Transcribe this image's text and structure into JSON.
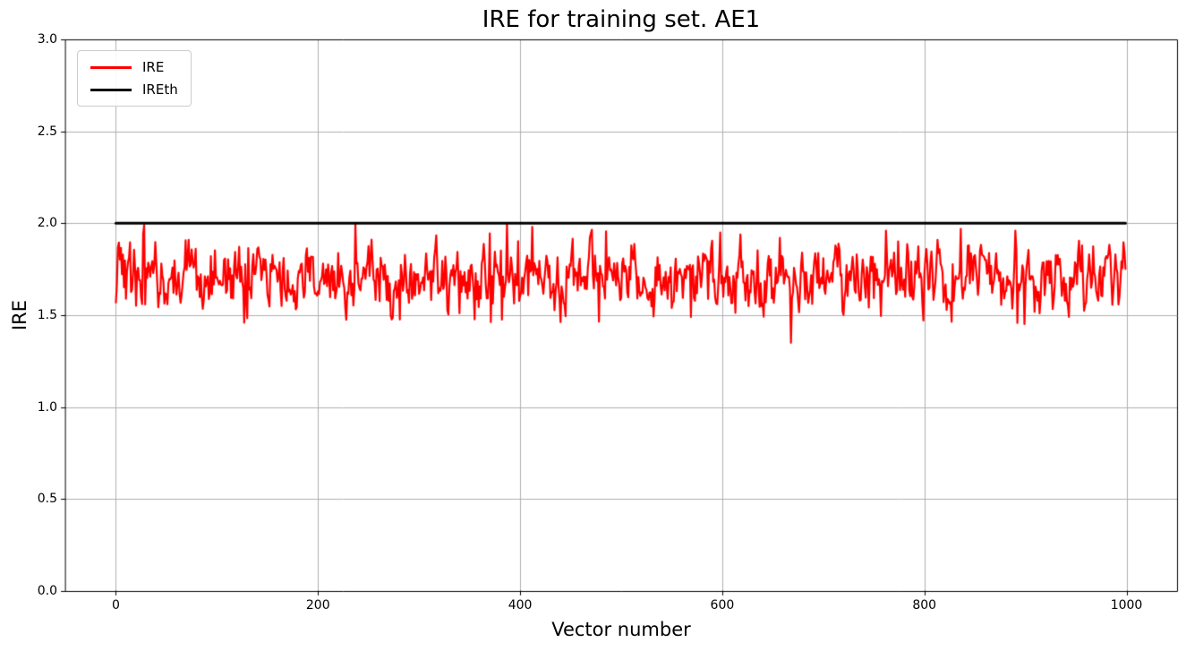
{
  "chart_data": {
    "type": "line",
    "title": "IRE for training set. AE1",
    "xlabel": "Vector number",
    "ylabel": "IRE",
    "xlim": [
      -50,
      1050
    ],
    "ylim": [
      0,
      3
    ],
    "x_ticks": [
      0,
      200,
      400,
      600,
      800,
      1000
    ],
    "x_tick_labels": [
      "0",
      "200",
      "400",
      "600",
      "800",
      "1000"
    ],
    "y_ticks": [
      0,
      0.5,
      1,
      1.5,
      2,
      2.5,
      3
    ],
    "y_tick_labels": [
      "0.0",
      "0.5",
      "1.0",
      "1.5",
      "2.0",
      "2.5",
      "3.0"
    ],
    "grid": true,
    "grid_color": "#b0b0b0",
    "background": "#ffffff",
    "axis_color": "#000000",
    "legend": {
      "position": "upper left",
      "entries": [
        {
          "label": "IRE",
          "color": "#ff0000",
          "line_width": 3
        },
        {
          "label": "IREth",
          "color": "#000000",
          "line_width": 3
        }
      ]
    },
    "series": [
      {
        "name": "IRE",
        "color": "#ff0000",
        "line_width": 2.2,
        "style": "noisy",
        "x_start": 0,
        "x_end": 999,
        "n_points": 1000,
        "mean": 1.7,
        "std": 0.085,
        "typical_band": [
          1.5,
          1.9
        ],
        "observed_min": 1.35,
        "observed_max": 2.0,
        "seed": 20,
        "notable_points": [
          {
            "x": 28,
            "y": 1.99
          },
          {
            "x": 237,
            "y": 2.0
          },
          {
            "x": 387,
            "y": 2.0
          },
          {
            "x": 412,
            "y": 1.98
          },
          {
            "x": 598,
            "y": 1.95
          },
          {
            "x": 668,
            "y": 1.35
          },
          {
            "x": 836,
            "y": 1.97
          },
          {
            "x": 890,
            "y": 1.96
          }
        ]
      },
      {
        "name": "IREth",
        "color": "#000000",
        "line_width": 3,
        "style": "constant",
        "value": 2.0,
        "x_start": 0,
        "x_end": 999
      }
    ]
  }
}
